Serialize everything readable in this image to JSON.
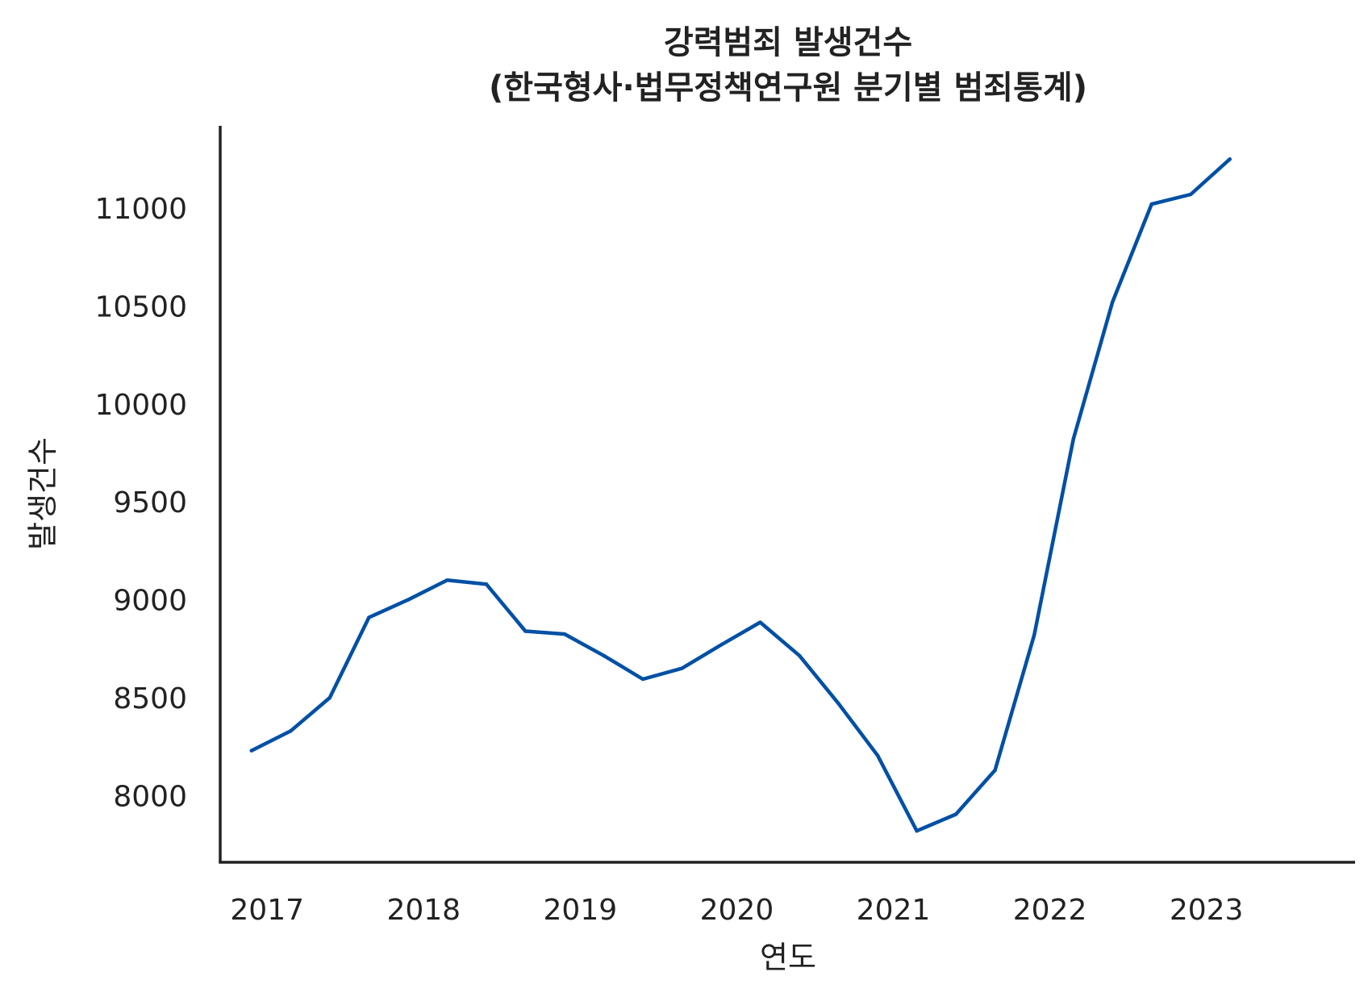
{
  "chart_data": {
    "type": "line",
    "title": "강력범죄 발생건수\n(한국형사·법무정책연구원 분기별 범죄통계)",
    "title_lines": [
      "강력범죄 발생건수",
      "(한국형사·법무정책연구원 분기별 범죄통계)"
    ],
    "xlabel": "연도",
    "ylabel": "발생건수",
    "x_ticks": [
      "2017",
      "2018",
      "2019",
      "2020",
      "2021",
      "2022",
      "2023"
    ],
    "y_ticks": [
      "8000",
      "8500",
      "9000",
      "9500",
      "10000",
      "10500",
      "11000"
    ],
    "xlim": [
      2016.7,
      2023.95
    ],
    "ylim": [
      7660,
      11420
    ],
    "grid": false,
    "legend": "none",
    "series": [
      {
        "color": "#0050a5",
        "x": [
          2016.9,
          2017.15,
          2017.4,
          2017.65,
          2017.9,
          2018.15,
          2018.4,
          2018.65,
          2018.9,
          2019.15,
          2019.4,
          2019.65,
          2019.9,
          2020.15,
          2020.4,
          2020.65,
          2020.9,
          2021.15,
          2021.4,
          2021.65,
          2021.9,
          2022.15,
          2022.4,
          2022.65,
          2022.9,
          2023.15
        ],
        "values": [
          8230,
          8330,
          8500,
          8910,
          9000,
          9100,
          9080,
          8840,
          8825,
          8715,
          8595,
          8650,
          8770,
          8885,
          8715,
          8470,
          8205,
          7820,
          7905,
          8130,
          8820,
          9820,
          10520,
          11020,
          11070,
          11250
        ]
      }
    ]
  }
}
